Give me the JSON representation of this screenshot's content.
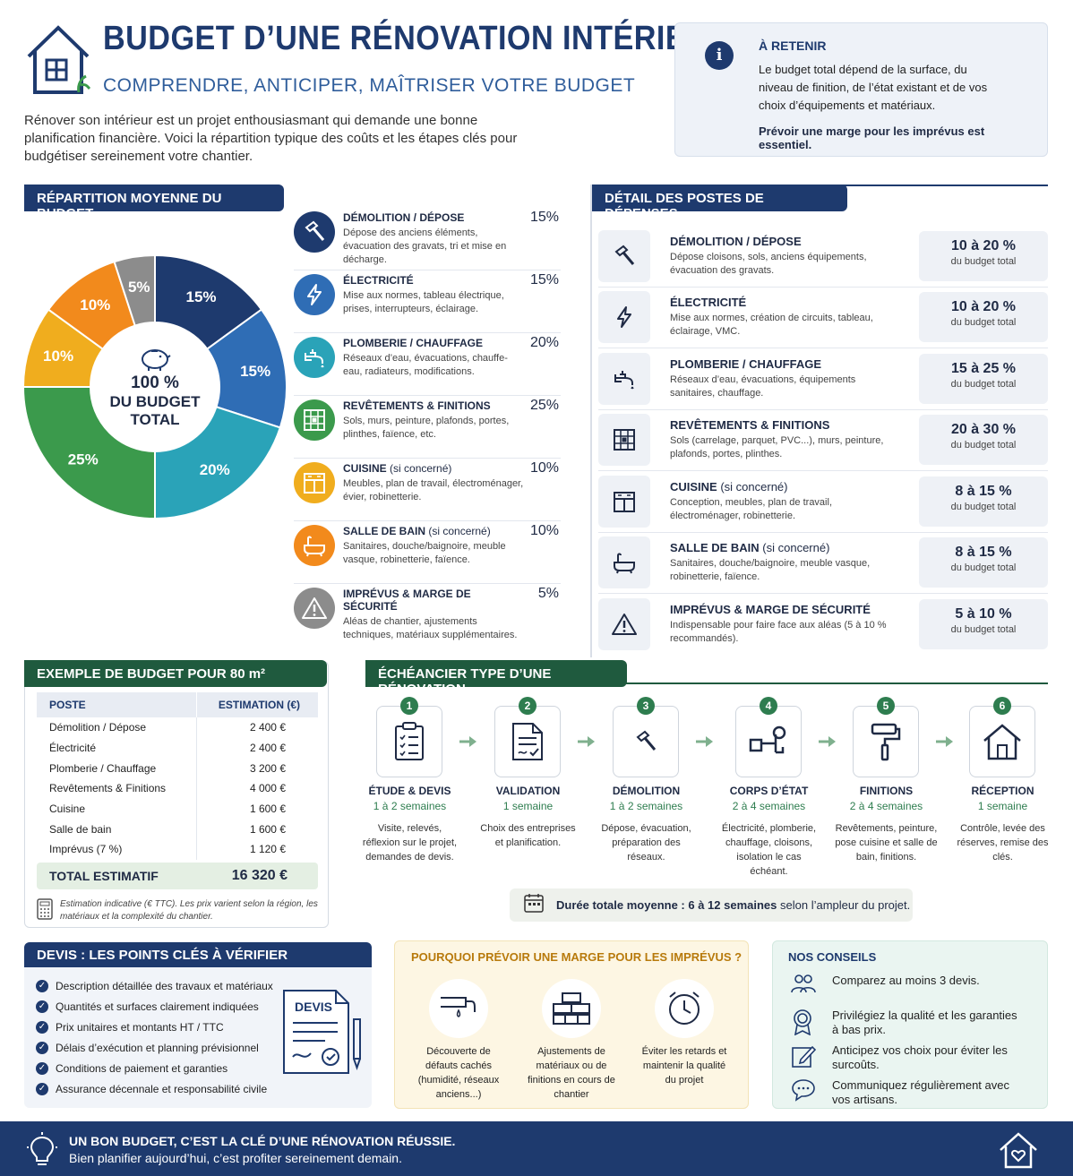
{
  "header": {
    "title": "BUDGET D’UNE RÉNOVATION INTÉRIEURE",
    "subtitle": "COMPRENDRE, ANTICIPER, MAÎTRISER VOTRE BUDGET",
    "intro": "Rénover son intérieur est un projet enthousiasmant qui demande une bonne planification financière. Voici la répartition typique des coûts et les étapes clés pour budgétiser sereinement votre chantier."
  },
  "retenir": {
    "title": "À RETENIR",
    "text": "Le budget total dépend de la surface, du niveau de finition, de l’état existant et de vos choix d’équipements et matériaux.",
    "bold": "Prévoir une marge pour les imprévus est essentiel."
  },
  "repartition": {
    "heading": "RÉPARTITION MOYENNE DU BUDGET",
    "center_pct": "100 %",
    "center_l1": "DU BUDGET",
    "center_l2": "TOTAL",
    "items": [
      {
        "title": "DÉMOLITION / DÉPOSE",
        "suffix": "",
        "desc": "Dépose des anciens éléments, évacuation des gravats, tri et mise en décharge.",
        "pct": "15%",
        "color": "#1e3a6e",
        "icon": "hammer-icon"
      },
      {
        "title": "ÉLECTRICITÉ",
        "suffix": "",
        "desc": "Mise aux normes, tableau électrique, prises, interrupteurs, éclairage.",
        "pct": "15%",
        "color": "#2f6db5",
        "icon": "lightning-icon"
      },
      {
        "title": "PLOMBERIE / CHAUFFAGE",
        "suffix": "",
        "desc": "Réseaux d’eau, évacuations, chauffe-eau, radiateurs, modifications.",
        "pct": "20%",
        "color": "#2aa3b8",
        "icon": "faucet-icon"
      },
      {
        "title": "REVÊTEMENTS & FINITIONS",
        "suffix": "",
        "desc": "Sols, murs, peinture, plafonds, portes, plinthes, faïence, etc.",
        "pct": "25%",
        "color": "#3b9a4c",
        "icon": "tiles-icon"
      },
      {
        "title": "CUISINE",
        "suffix": " (si concerné)",
        "desc": "Meubles, plan de travail, électroménager, évier, robinetterie.",
        "pct": "10%",
        "color": "#f0ad1e",
        "icon": "kitchen-icon"
      },
      {
        "title": "SALLE DE BAIN",
        "suffix": " (si concerné)",
        "desc": "Sanitaires, douche/baignoire, meuble vasque, robinetterie, faïence.",
        "pct": "10%",
        "color": "#f28a1c",
        "icon": "bathtub-icon"
      },
      {
        "title": "IMPRÉVUS & MARGE DE SÉCURITÉ",
        "suffix": "",
        "desc": "Aléas de chantier, ajustements techniques, matériaux supplémentaires.",
        "pct": "5%",
        "color": "#8c8c8c",
        "icon": "warning-icon"
      }
    ]
  },
  "chart_data": {
    "type": "pie",
    "categories": [
      "Démolition / Dépose",
      "Électricité",
      "Plomberie / Chauffage",
      "Revêtements & Finitions",
      "Cuisine",
      "Salle de bain",
      "Imprévus & marge de sécurité"
    ],
    "values": [
      15,
      15,
      20,
      25,
      10,
      10,
      5
    ],
    "labels": [
      "15%",
      "15%",
      "20%",
      "25%",
      "10%",
      "10%",
      "5%"
    ],
    "colors": [
      "#1e3a6e",
      "#2f6db5",
      "#2aa3b8",
      "#3b9a4c",
      "#f0ad1e",
      "#f28a1c",
      "#8c8c8c"
    ],
    "title": "RÉPARTITION MOYENNE DU BUDGET"
  },
  "detail": {
    "heading": "DÉTAIL DES POSTES DE DÉPENSES",
    "sub": "du budget total",
    "items": [
      {
        "title": "DÉMOLITION / DÉPOSE",
        "suffix": "",
        "desc": "Dépose cloisons, sols, anciens équipements, évacuation des gravats.",
        "range": "10 à 20 %",
        "icon": "hammer-icon"
      },
      {
        "title": "ÉLECTRICITÉ",
        "suffix": "",
        "desc": "Mise aux normes, création de circuits, tableau, éclairage, VMC.",
        "range": "10 à 20 %",
        "icon": "lightning-icon"
      },
      {
        "title": "PLOMBERIE / CHAUFFAGE",
        "suffix": "",
        "desc": "Réseaux d’eau, évacuations, équipements sanitaires, chauffage.",
        "range": "15 à 25 %",
        "icon": "faucet-icon"
      },
      {
        "title": "REVÊTEMENTS & FINITIONS",
        "suffix": "",
        "desc": "Sols (carrelage, parquet, PVC...), murs, peinture, plafonds, portes, plinthes.",
        "range": "20 à 30 %",
        "icon": "tiles-icon"
      },
      {
        "title": "CUISINE",
        "suffix": " (si concerné)",
        "desc": "Conception, meubles, plan de travail, électroménager, robinetterie.",
        "range": "8 à 15 %",
        "icon": "kitchen-icon"
      },
      {
        "title": "SALLE DE BAIN",
        "suffix": " (si concerné)",
        "desc": "Sanitaires, douche/baignoire, meuble vasque, robinetterie, faïence.",
        "range": "8 à 15 %",
        "icon": "bathtub-icon"
      },
      {
        "title": "IMPRÉVUS & MARGE DE SÉCURITÉ",
        "suffix": "",
        "desc": "Indispensable pour faire face aux aléas (5 à 10 % recommandés).",
        "range": "5 à 10 %",
        "icon": "warning-icon"
      }
    ]
  },
  "exemple": {
    "heading": "EXEMPLE DE BUDGET POUR 80 m²",
    "col1": "POSTE",
    "col2": "ESTIMATION (€)",
    "rows": [
      {
        "poste": "Démolition / Dépose",
        "estimation": "2 400 €"
      },
      {
        "poste": "Électricité",
        "estimation": "2 400 €"
      },
      {
        "poste": "Plomberie / Chauffage",
        "estimation": "3 200 €"
      },
      {
        "poste": "Revêtements & Finitions",
        "estimation": "4 000 €"
      },
      {
        "poste": "Cuisine",
        "estimation": "1 600 €"
      },
      {
        "poste": "Salle de bain",
        "estimation": "1 600 €"
      },
      {
        "poste": "Imprévus (7 %)",
        "estimation": "1 120 €"
      }
    ],
    "total_label": "TOTAL ESTIMATIF",
    "total_value": "16 320 €",
    "note": "Estimation indicative (€ TTC). Les prix varient selon la région, les matériaux et la complexité du chantier."
  },
  "echeancier": {
    "heading": "ÉCHÉANCIER TYPE D’UNE RÉNOVATION",
    "steps": [
      {
        "num": "1",
        "title": "ÉTUDE & DEVIS",
        "duration": "1 à 2 semaines",
        "desc": "Visite, relevés, réflexion sur le projet, demandes de devis.",
        "icon": "checklist-icon"
      },
      {
        "num": "2",
        "title": "VALIDATION",
        "duration": "1 semaine",
        "desc": "Choix des entreprises et planification.",
        "icon": "document-check-icon"
      },
      {
        "num": "3",
        "title": "DÉMOLITION",
        "duration": "1 à 2 semaines",
        "desc": "Dépose, évacuation, préparation des réseaux.",
        "icon": "hammer-icon"
      },
      {
        "num": "4",
        "title": "CORPS D’ÉTAT",
        "duration": "2 à 4 semaines",
        "desc": "Électricité, plomberie, chauffage, cloisons, isolation le cas échéant.",
        "icon": "pipes-icon"
      },
      {
        "num": "5",
        "title": "FINITIONS",
        "duration": "2 à 4 semaines",
        "desc": "Revêtements, peinture, pose cuisine et salle de bain, finitions.",
        "icon": "paint-roller-icon"
      },
      {
        "num": "6",
        "title": "RÉCEPTION",
        "duration": "1 semaine",
        "desc": "Contrôle, levée des réserves, remise des clés.",
        "icon": "house-icon"
      }
    ],
    "total_bold": "Durée totale moyenne : 6 à 12 semaines",
    "total_rest": " selon l’ampleur du projet."
  },
  "devis": {
    "heading": "DEVIS : LES POINTS CLÉS À VÉRIFIER",
    "badge": "DEVIS",
    "items": [
      "Description détaillée des travaux et matériaux",
      "Quantités et surfaces clairement indiquées",
      "Prix unitaires et montants HT / TTC",
      "Délais d’exécution et planning prévisionnel",
      "Conditions de paiement et garanties",
      "Assurance décennale et responsabilité civile"
    ]
  },
  "marge": {
    "heading": "POURQUOI PRÉVOIR UNE MARGE POUR LES IMPRÉVUS ?",
    "items": [
      {
        "text": "Découverte de défauts cachés (humidité, réseaux anciens...)",
        "icon": "leaking-pipe-icon"
      },
      {
        "text": "Ajustements de matériaux ou de finitions en cours de chantier",
        "icon": "bricks-icon"
      },
      {
        "text": "Éviter les retards et maintenir la qualité du projet",
        "icon": "clock-icon"
      }
    ]
  },
  "conseils": {
    "heading": "NOS CONSEILS",
    "items": [
      {
        "text": "Comparez au moins 3 devis.",
        "icon": "people-icon"
      },
      {
        "text": "Privilégiez la qualité et les garanties à bas prix.",
        "icon": "award-icon"
      },
      {
        "text": "Anticipez vos choix pour éviter les surcoûts.",
        "icon": "edit-icon"
      },
      {
        "text": "Communiquez régulièrement avec vos artisans.",
        "icon": "chat-icon"
      }
    ]
  },
  "footer": {
    "line1": "UN BON BUDGET, C’EST LA CLÉ D’UNE RÉNOVATION RÉUSSIE.",
    "line2": "Bien planifier aujourd’hui, c’est profiter sereinement demain."
  }
}
